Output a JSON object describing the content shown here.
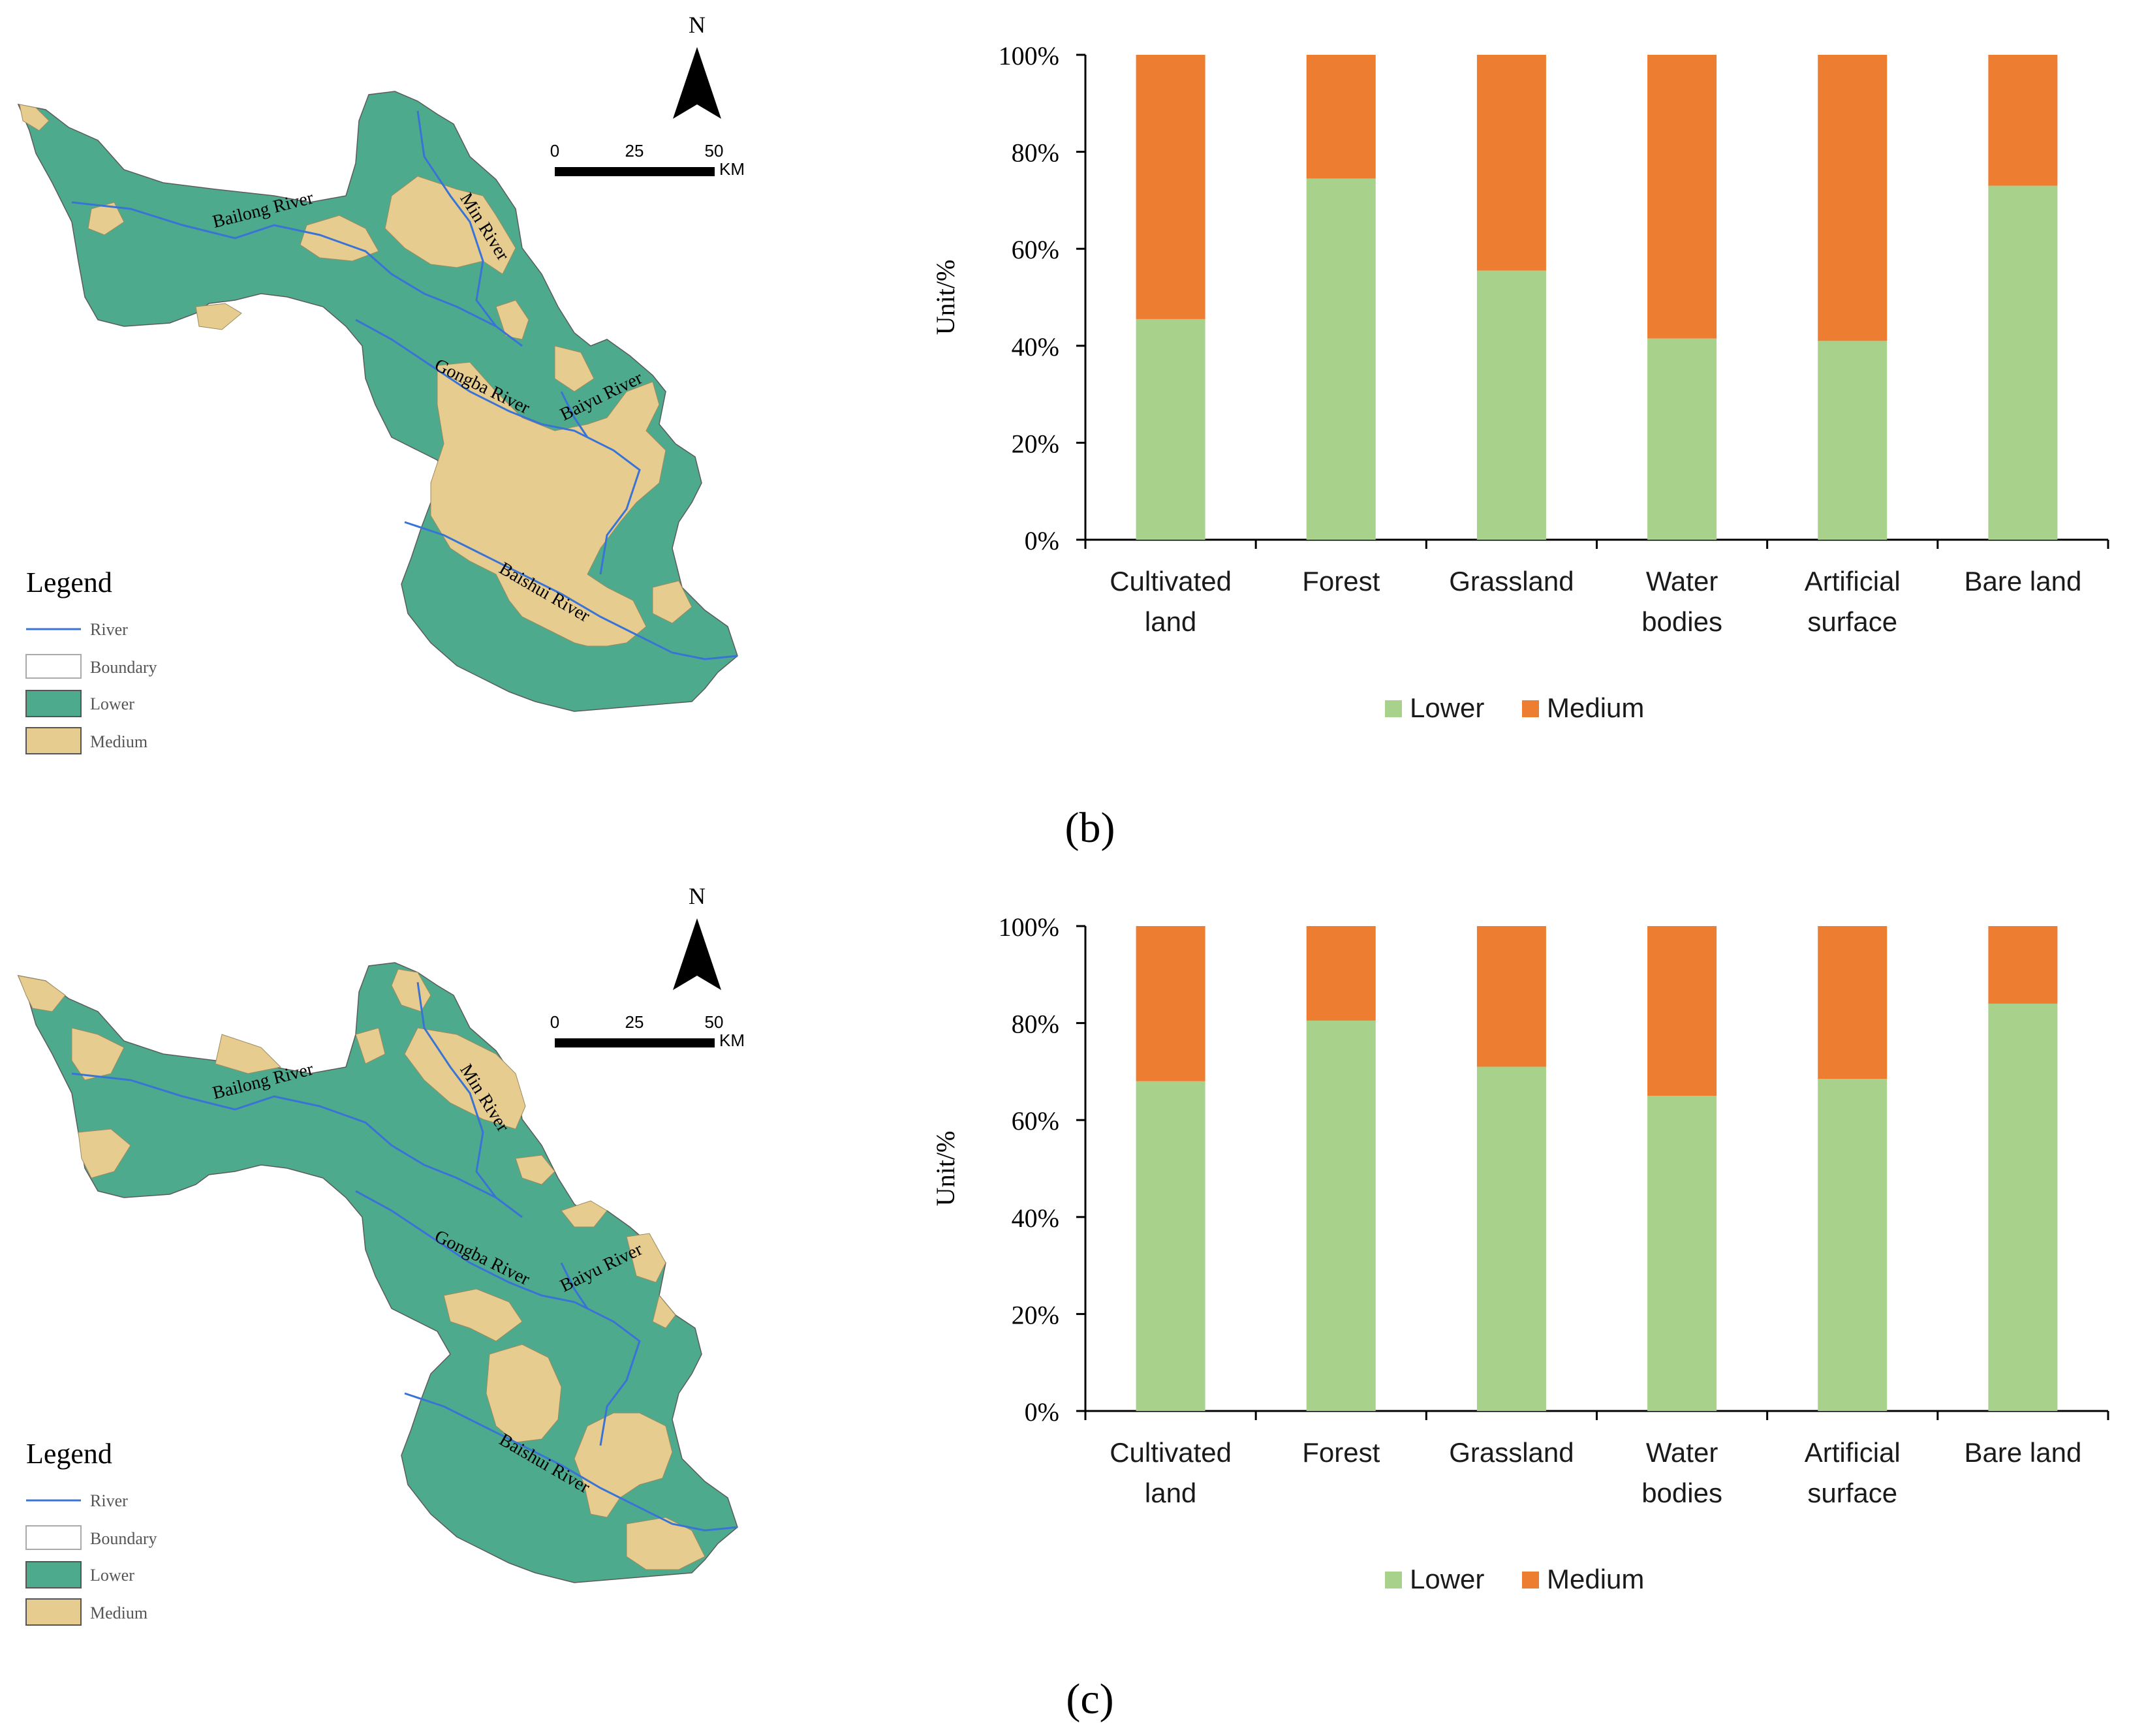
{
  "colors": {
    "lower_map": "#4eaa8c",
    "medium_map": "#e6cc8f",
    "river": "#3a73d6",
    "lower_bar": "#a8d18c",
    "medium_bar": "#ed7d31",
    "axis": "#000000"
  },
  "icons": {
    "north_arrow": "north-arrow-icon"
  },
  "panels": [
    {
      "label": "(b)",
      "map": {
        "north_label": "N",
        "scale": {
          "ticks": [
            "0",
            "25",
            "50"
          ],
          "unit": "KM"
        },
        "rivers": [
          "Bailong River",
          "Min River",
          "Gongba River",
          "Baiyu River",
          "Baishui River"
        ],
        "legend": {
          "title": "Legend",
          "items": [
            "River",
            "Boundary",
            "Lower",
            "Medium"
          ]
        }
      },
      "chart_data": {
        "type": "bar",
        "stacked": true,
        "percent": true,
        "ylabel": "Unit/%",
        "ylim": [
          0,
          100
        ],
        "yticks": [
          "0%",
          "20%",
          "40%",
          "60%",
          "80%",
          "100%"
        ],
        "categories": [
          [
            "Cultivated",
            "land"
          ],
          [
            "Forest"
          ],
          [
            "Grassland"
          ],
          [
            "Water",
            "bodies"
          ],
          [
            "Artificial",
            "surface"
          ],
          [
            "Bare land"
          ]
        ],
        "series": [
          {
            "name": "Lower",
            "values": [
              45.5,
              74.5,
              55.5,
              41.5,
              41.0,
              73.0
            ]
          },
          {
            "name": "Medium",
            "values": [
              54.5,
              25.5,
              44.5,
              58.5,
              59.0,
              27.0
            ]
          }
        ],
        "legend": [
          "Lower",
          "Medium"
        ]
      }
    },
    {
      "label": "(c)",
      "map": {
        "north_label": "N",
        "scale": {
          "ticks": [
            "0",
            "25",
            "50"
          ],
          "unit": "KM"
        },
        "rivers": [
          "Bailong River",
          "Min River",
          "Gongba River",
          "Baiyu River",
          "Baishui River"
        ],
        "legend": {
          "title": "Legend",
          "items": [
            "River",
            "Boundary",
            "Lower",
            "Medium"
          ]
        }
      },
      "chart_data": {
        "type": "bar",
        "stacked": true,
        "percent": true,
        "ylabel": "Unit/%",
        "ylim": [
          0,
          100
        ],
        "yticks": [
          "0%",
          "20%",
          "40%",
          "60%",
          "80%",
          "100%"
        ],
        "categories": [
          [
            "Cultivated",
            "land"
          ],
          [
            "Forest"
          ],
          [
            "Grassland"
          ],
          [
            "Water",
            "bodies"
          ],
          [
            "Artificial",
            "surface"
          ],
          [
            "Bare land"
          ]
        ],
        "series": [
          {
            "name": "Lower",
            "values": [
              68.0,
              80.5,
              71.0,
              65.0,
              68.5,
              84.0
            ]
          },
          {
            "name": "Medium",
            "values": [
              32.0,
              19.5,
              29.0,
              35.0,
              31.5,
              16.0
            ]
          }
        ],
        "legend": [
          "Lower",
          "Medium"
        ]
      }
    }
  ]
}
